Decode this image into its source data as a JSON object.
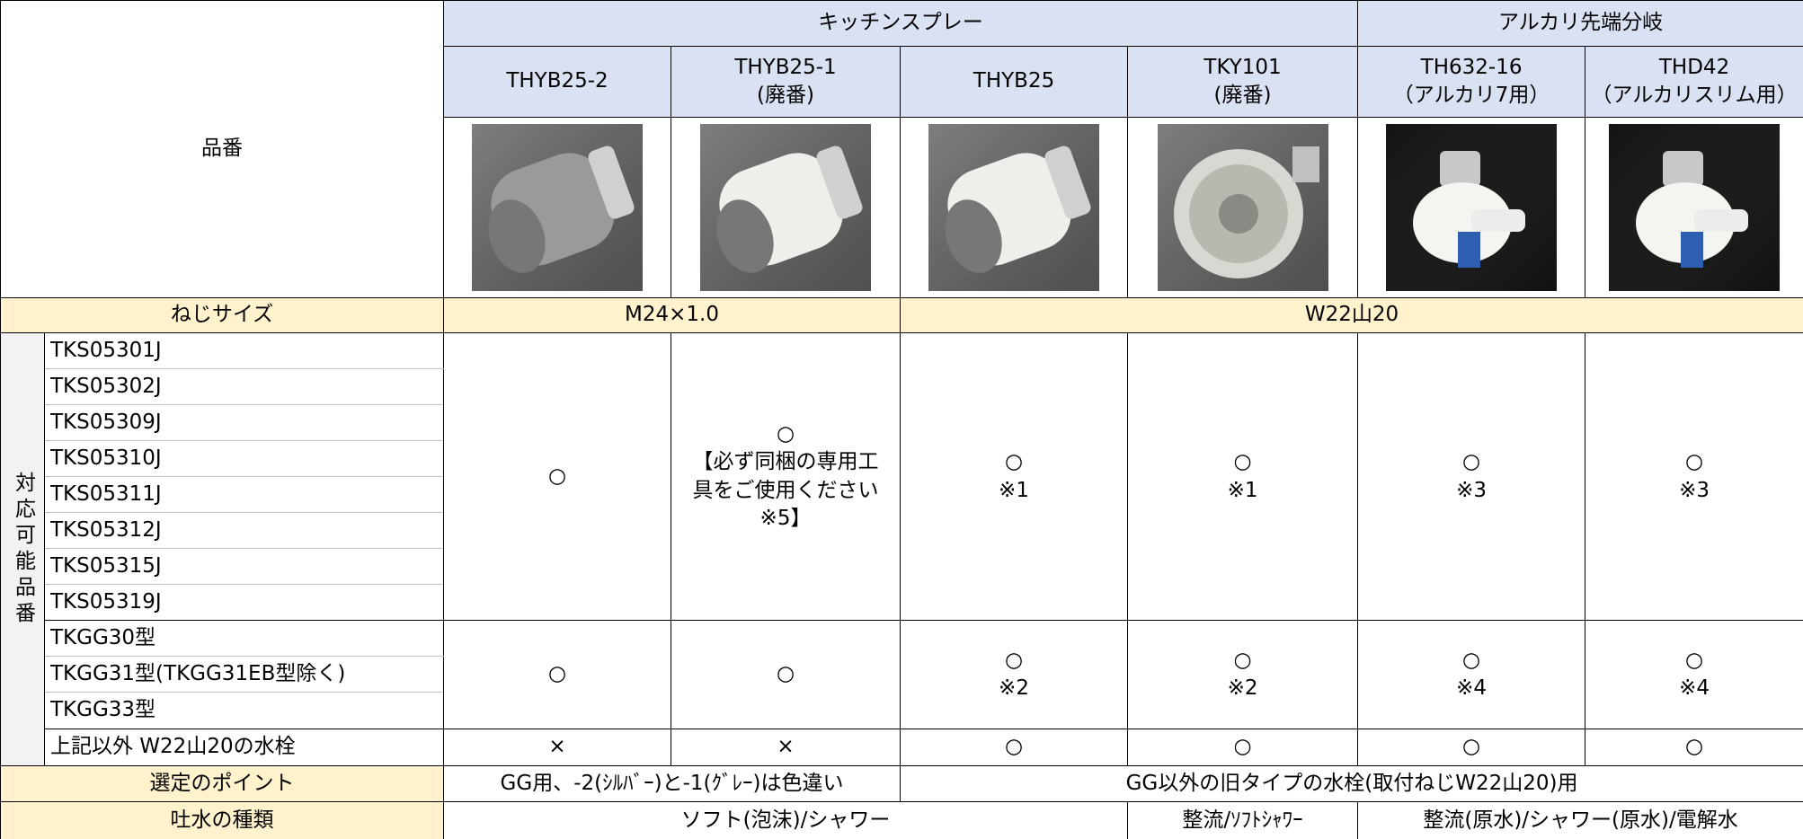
{
  "table": {
    "corner": "品番",
    "groups": [
      "キッチンスプレー",
      "アルカリ先端分岐"
    ],
    "models": [
      {
        "name": "THYB25-2"
      },
      {
        "name": "THYB25-1",
        "note": "(廃番)"
      },
      {
        "name": "THYB25"
      },
      {
        "name": "TKY101",
        "note": "(廃番)"
      },
      {
        "name": "TH632-16",
        "note": "（アルカリ7用）"
      },
      {
        "name": "THD42",
        "note": "（アルカリスリム用）"
      }
    ],
    "screw_label": "ねじサイズ",
    "screw_sizes": [
      "M24×1.0",
      "W22山20"
    ],
    "side_label": "対応可能品番",
    "products": [
      "TKS05301J",
      "TKS05302J",
      "TKS05309J",
      "TKS05310J",
      "TKS05311J",
      "TKS05312J",
      "TKS05315J",
      "TKS05319J",
      "TKGG30型",
      "TKGG31型(TKGG31EB型除く)",
      "TKGG33型",
      "上記以外 W22山20の水栓"
    ],
    "block1": [
      [
        "○"
      ],
      [
        "○",
        "【必ず同梱の専用工",
        "具をご使用ください",
        "※5】"
      ],
      [
        "○",
        "※1"
      ],
      [
        "○",
        "※1"
      ],
      [
        "○",
        "※3"
      ],
      [
        "○",
        "※3"
      ]
    ],
    "block2": [
      [
        "○"
      ],
      [
        "○"
      ],
      [
        "○",
        "※2"
      ],
      [
        "○",
        "※2"
      ],
      [
        "○",
        "※4"
      ],
      [
        "○",
        "※4"
      ]
    ],
    "other": [
      "×",
      "×",
      "○",
      "○",
      "○",
      "○"
    ],
    "selection_label": "選定のポイント",
    "selection": [
      "GG用、-2(ｼﾙﾊﾞｰ)と-1(ｸﾞﾚｰ)は色違い",
      "GG以外の旧タイプの水栓(取付ねじW22山20)用"
    ],
    "spout_label": "吐水の種類",
    "spout": [
      "ソフト(泡沫)/シャワー",
      "整流/ｿﾌﾄｼｬﾜｰ",
      "整流(原水)/シャワー(原水)/電解水"
    ]
  }
}
